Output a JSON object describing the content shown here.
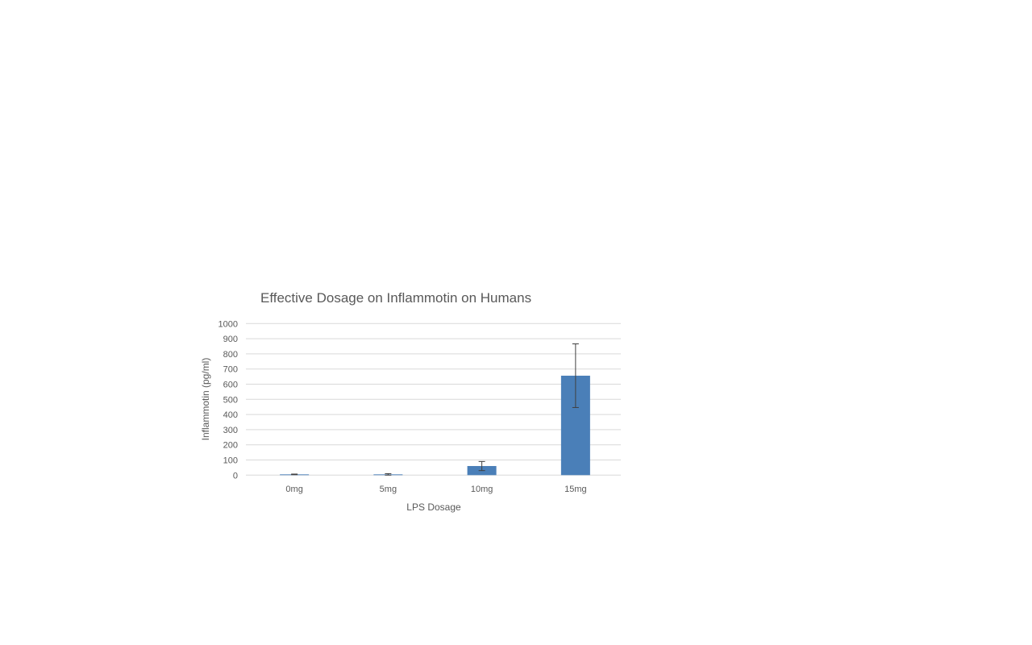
{
  "chart_data": {
    "type": "bar",
    "title": "Effective Dosage on Inflammotin on Humans",
    "xlabel": "LPS Dosage",
    "ylabel": "Inflammotin (pg/ml)",
    "categories": [
      "0mg",
      "5mg",
      "10mg",
      "15mg"
    ],
    "values": [
      5,
      5,
      60,
      656
    ],
    "error": [
      2,
      5,
      30,
      210
    ],
    "ylim": [
      0,
      1000
    ],
    "yticks": [
      0,
      100,
      200,
      300,
      400,
      500,
      600,
      700,
      800,
      900,
      1000
    ],
    "grid": true,
    "bar_color": "#4a7fb8",
    "error_color": "#404040",
    "grid_color": "#d9d9d9"
  }
}
